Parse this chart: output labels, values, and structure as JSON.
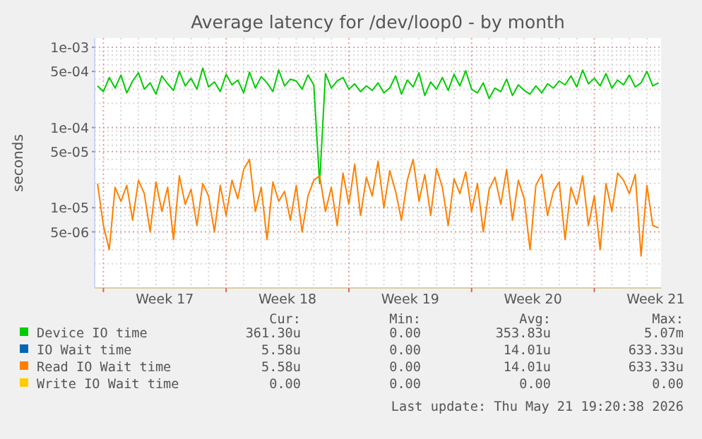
{
  "chart_data": {
    "type": "line",
    "title": "Average latency for /dev/loop0 - by month",
    "ylabel": "seconds",
    "log": "y",
    "grid": true,
    "legend": "bottom",
    "marker": "none",
    "line_style": "solid",
    "xlim": [
      "2026-04-19T12:00",
      "2026-05-21T19:20"
    ],
    "xticks": [
      {
        "value": "2026-04-20T00:00",
        "label": null
      },
      {
        "value": "2026-04-23T12:00",
        "label": "Week 17"
      },
      {
        "value": "2026-04-27T00:00",
        "label": null
      },
      {
        "value": "2026-04-30T12:00",
        "label": "Week 18"
      },
      {
        "value": "2026-05-04T00:00",
        "label": null
      },
      {
        "value": "2026-05-07T12:00",
        "label": "Week 19"
      },
      {
        "value": "2026-05-11T00:00",
        "label": null
      },
      {
        "value": "2026-05-14T12:00",
        "label": "Week 20"
      },
      {
        "value": "2026-05-18T00:00",
        "label": null
      },
      {
        "value": "2026-05-21T12:00",
        "label": "Week 21"
      }
    ],
    "ylim": [
      1e-06,
      0.0013
    ],
    "yticks": [
      {
        "value": 0.001,
        "label": "1e-03"
      },
      {
        "value": 0.0005,
        "label": "5e-04"
      },
      {
        "value": 0.0001,
        "label": "1e-04"
      },
      {
        "value": 5e-05,
        "label": "5e-05"
      },
      {
        "value": 1e-05,
        "label": "1e-05"
      },
      {
        "value": 5e-06,
        "label": "5e-06"
      }
    ],
    "x": [
      "2026-04-19T16:00",
      "2026-04-20T00:00",
      "2026-04-20T08:00",
      "2026-04-20T16:00",
      "2026-04-21T00:00",
      "2026-04-21T08:00",
      "2026-04-21T16:00",
      "2026-04-22T00:00",
      "2026-04-22T08:00",
      "2026-04-22T16:00",
      "2026-04-23T00:00",
      "2026-04-23T08:00",
      "2026-04-23T16:00",
      "2026-04-24T00:00",
      "2026-04-24T08:00",
      "2026-04-24T16:00",
      "2026-04-25T00:00",
      "2026-04-25T08:00",
      "2026-04-25T16:00",
      "2026-04-26T00:00",
      "2026-04-26T08:00",
      "2026-04-26T16:00",
      "2026-04-27T00:00",
      "2026-04-27T08:00",
      "2026-04-27T16:00",
      "2026-04-28T00:00",
      "2026-04-28T08:00",
      "2026-04-28T16:00",
      "2026-04-29T00:00",
      "2026-04-29T08:00",
      "2026-04-29T16:00",
      "2026-04-30T00:00",
      "2026-04-30T08:00",
      "2026-04-30T16:00",
      "2026-05-01T00:00",
      "2026-05-01T08:00",
      "2026-05-01T16:00",
      "2026-05-02T00:00",
      "2026-05-02T08:00",
      "2026-05-02T16:00",
      "2026-05-03T00:00",
      "2026-05-03T08:00",
      "2026-05-03T16:00",
      "2026-05-04T00:00",
      "2026-05-04T08:00",
      "2026-05-04T16:00",
      "2026-05-05T00:00",
      "2026-05-05T08:00",
      "2026-05-05T16:00",
      "2026-05-06T00:00",
      "2026-05-06T08:00",
      "2026-05-06T16:00",
      "2026-05-07T00:00",
      "2026-05-07T08:00",
      "2026-05-07T16:00",
      "2026-05-08T00:00",
      "2026-05-08T08:00",
      "2026-05-08T16:00",
      "2026-05-09T00:00",
      "2026-05-09T08:00",
      "2026-05-09T16:00",
      "2026-05-10T00:00",
      "2026-05-10T08:00",
      "2026-05-10T16:00",
      "2026-05-11T00:00",
      "2026-05-11T08:00",
      "2026-05-11T16:00",
      "2026-05-12T00:00",
      "2026-05-12T08:00",
      "2026-05-12T16:00",
      "2026-05-13T00:00",
      "2026-05-13T08:00",
      "2026-05-13T16:00",
      "2026-05-14T00:00",
      "2026-05-14T08:00",
      "2026-05-14T16:00",
      "2026-05-15T00:00",
      "2026-05-15T08:00",
      "2026-05-15T16:00",
      "2026-05-16T00:00",
      "2026-05-16T08:00",
      "2026-05-16T16:00",
      "2026-05-17T00:00",
      "2026-05-17T08:00",
      "2026-05-17T16:00",
      "2026-05-18T00:00",
      "2026-05-18T08:00",
      "2026-05-18T16:00",
      "2026-05-19T00:00",
      "2026-05-19T08:00",
      "2026-05-19T16:00",
      "2026-05-20T00:00",
      "2026-05-20T08:00",
      "2026-05-20T16:00",
      "2026-05-21T00:00",
      "2026-05-21T08:00",
      "2026-05-21T16:00"
    ],
    "series": [
      {
        "name": "Device IO time",
        "color": "#00cc00",
        "values": [
          0.00033,
          0.00028,
          0.00042,
          0.00031,
          0.00045,
          0.00027,
          0.00038,
          0.00048,
          0.0003,
          0.00036,
          0.00026,
          0.00044,
          0.00035,
          0.00029,
          0.0005,
          0.00033,
          0.00041,
          0.0003,
          0.00055,
          0.00032,
          0.00037,
          0.00028,
          0.00046,
          0.00034,
          0.00039,
          0.00027,
          0.00049,
          0.00031,
          0.00043,
          0.00036,
          0.00028,
          0.00052,
          0.00033,
          0.0004,
          0.00038,
          0.0003,
          0.00045,
          0.00034,
          2e-05,
          0.00047,
          0.00031,
          0.00038,
          0.00042,
          0.0003,
          0.00035,
          0.00028,
          0.00033,
          0.00029,
          0.00036,
          0.00027,
          0.00031,
          0.00044,
          0.00026,
          0.00039,
          0.00032,
          0.00048,
          0.00025,
          0.00037,
          0.0003,
          0.00042,
          0.00029,
          0.00046,
          0.00033,
          0.00051,
          0.0003,
          0.00027,
          0.00036,
          0.00023,
          0.00031,
          0.00028,
          0.0004,
          0.00025,
          0.00034,
          0.00029,
          0.00026,
          0.00033,
          0.00027,
          0.00035,
          0.00031,
          0.00038,
          0.00034,
          0.00044,
          0.00032,
          0.00052,
          0.00035,
          0.00041,
          0.00033,
          0.00047,
          0.00031,
          0.00039,
          0.00034,
          0.00045,
          0.00032,
          0.00036,
          0.0005,
          0.00033,
          0.00036
        ]
      },
      {
        "name": "IO Wait time",
        "color": "#0066b3",
        "values": [
          null,
          null,
          null,
          null,
          null,
          null,
          null,
          null,
          null,
          null,
          null,
          null,
          null,
          null,
          null,
          null,
          null,
          null,
          null,
          null,
          null,
          null,
          null,
          null,
          null,
          null,
          null,
          null,
          null,
          null,
          null,
          null,
          null,
          null,
          null,
          null,
          null,
          null,
          null,
          null,
          null,
          null,
          null,
          null,
          null,
          null,
          null,
          null,
          null,
          null,
          null,
          null,
          null,
          null,
          null,
          null,
          null,
          null,
          null,
          null,
          null,
          null,
          null,
          null,
          null,
          null,
          null,
          null,
          null,
          null,
          null,
          null,
          null,
          null,
          null,
          null,
          null,
          null,
          null,
          null,
          null,
          null,
          null,
          null,
          null,
          null,
          null,
          null,
          null,
          null,
          null,
          null,
          null,
          null,
          null,
          null,
          null
        ]
      },
      {
        "name": "Read IO Wait time",
        "color": "#ff8000",
        "values": [
          2e-05,
          6e-06,
          3e-06,
          1.8e-05,
          1.2e-05,
          1.9e-05,
          7e-06,
          2.2e-05,
          1.5e-05,
          5e-06,
          2.1e-05,
          9e-06,
          1.8e-05,
          4e-06,
          2.5e-05,
          1.1e-05,
          1.7e-05,
          6e-06,
          2e-05,
          1.4e-05,
          5e-06,
          1.9e-05,
          8e-06,
          2.2e-05,
          1.3e-05,
          3e-05,
          4e-05,
          9e-06,
          1.8e-05,
          4e-06,
          2.1e-05,
          1.2e-05,
          1.6e-05,
          7e-06,
          1.9e-05,
          5e-06,
          1.4e-05,
          2.2e-05,
          2.5e-05,
          9e-06,
          1.8e-05,
          6e-06,
          2.7e-05,
          1.1e-05,
          3.5e-05,
          8e-06,
          2.4e-05,
          1.4e-05,
          3.8e-05,
          1e-05,
          2.9e-05,
          1.6e-05,
          7e-06,
          2.2e-05,
          4e-05,
          1.2e-05,
          2.6e-05,
          8e-06,
          3.1e-05,
          1.8e-05,
          6e-06,
          2.3e-05,
          1.5e-05,
          2.8e-05,
          9e-06,
          2e-05,
          5e-06,
          1.7e-05,
          2.4e-05,
          1.1e-05,
          3e-05,
          7e-06,
          2.2e-05,
          1.3e-05,
          3e-06,
          1.9e-05,
          2.6e-05,
          8e-06,
          1.6e-05,
          2.1e-05,
          4e-06,
          1.8e-05,
          1.1e-05,
          2.5e-05,
          6e-06,
          1.4e-05,
          3e-06,
          2e-05,
          9e-06,
          2.7e-05,
          2.2e-05,
          1.5e-05,
          2.6e-05,
          2.5e-06,
          1.9e-05,
          6e-06,
          5.6e-06
        ]
      },
      {
        "name": "Write IO Wait time",
        "color": "#ffcc00",
        "values": [
          null,
          null,
          null,
          null,
          null,
          null,
          null,
          null,
          null,
          null,
          null,
          null,
          null,
          null,
          null,
          null,
          null,
          null,
          null,
          null,
          null,
          null,
          null,
          null,
          null,
          null,
          null,
          null,
          null,
          null,
          null,
          null,
          null,
          null,
          null,
          null,
          null,
          null,
          null,
          null,
          null,
          null,
          null,
          null,
          null,
          null,
          null,
          null,
          null,
          null,
          null,
          null,
          null,
          null,
          null,
          null,
          null,
          null,
          null,
          null,
          null,
          null,
          null,
          null,
          null,
          null,
          null,
          null,
          null,
          null,
          null,
          null,
          null,
          null,
          null,
          null,
          null,
          null,
          null,
          null,
          null,
          null,
          null,
          null,
          null,
          null,
          null,
          null,
          null,
          null,
          null,
          null,
          null,
          null,
          null,
          null,
          null
        ]
      }
    ],
    "annotations": [
      "Cur:",
      "Min:",
      "Avg:",
      "Max:",
      "361.30u",
      "0.00",
      "353.83u",
      "5.07m",
      "5.58u",
      "0.00",
      "14.01u",
      "633.33u",
      "5.58u",
      "0.00",
      "14.01u",
      "633.33u",
      "0.00",
      "0.00",
      "0.00",
      "0.00",
      "Last update: Thu May 21 19:20:38 2026"
    ]
  }
}
